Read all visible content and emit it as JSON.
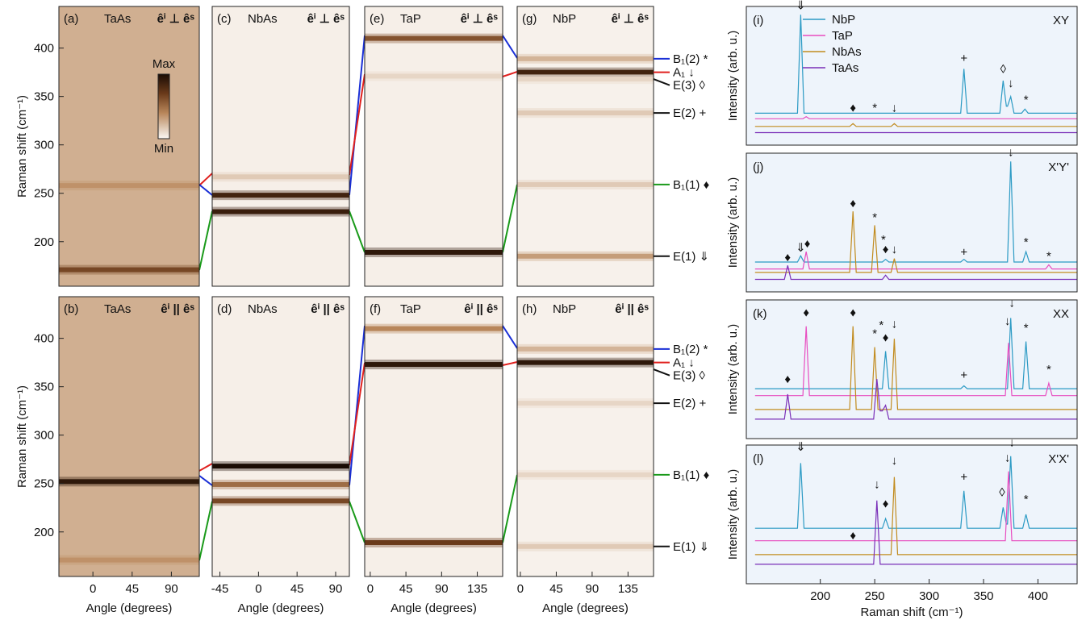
{
  "chart_data": [
    {
      "type": "heatmap",
      "panel": "(a)",
      "material": "TaAs",
      "polarization": "êⁱ ⊥ êˢ",
      "ylabel": "Raman shift (cm⁻¹)",
      "xlim": [
        -39,
        122
      ],
      "ylim": [
        154,
        443
      ],
      "yticks": [
        200,
        250,
        300,
        350,
        400
      ],
      "background": 0.32,
      "bands": [
        {
          "shift": 258,
          "intensity": 0.45
        },
        {
          "shift": 171,
          "intensity": 0.75
        }
      ],
      "colorbar_labels": [
        "Max",
        "Min"
      ]
    },
    {
      "type": "heatmap",
      "panel": "(b)",
      "material": "TaAs",
      "polarization": "êⁱ || êˢ",
      "xlabel": "Angle (degrees)",
      "ylabel": "Raman shift (cm⁻¹)",
      "xlim": [
        -39,
        122
      ],
      "xticks": [
        0,
        45,
        90
      ],
      "ylim": [
        154,
        443
      ],
      "yticks": [
        200,
        250,
        300,
        350,
        400
      ],
      "background": 0.32,
      "bands": [
        {
          "shift": 252,
          "intensity": 0.95
        },
        {
          "shift": 171,
          "intensity": 0.45
        }
      ]
    },
    {
      "type": "heatmap",
      "panel": "(c)",
      "material": "NbAs",
      "polarization": "êⁱ ⊥ êˢ",
      "xlim": [
        -54,
        106
      ],
      "ylim": [
        154,
        443
      ],
      "background": 0.04,
      "bands": [
        {
          "shift": 267,
          "intensity": 0.2
        },
        {
          "shift": 248,
          "intensity": 0.9
        },
        {
          "shift": 231,
          "intensity": 0.92
        }
      ]
    },
    {
      "type": "heatmap",
      "panel": "(d)",
      "material": "NbAs",
      "polarization": "êⁱ || êˢ",
      "xlabel": "Angle (degrees)",
      "xlim": [
        -54,
        106
      ],
      "xticks": [
        -45,
        0,
        45,
        90
      ],
      "ylim": [
        154,
        443
      ],
      "background": 0.04,
      "bands": [
        {
          "shift": 268,
          "intensity": 1.0
        },
        {
          "shift": 249,
          "intensity": 0.6
        },
        {
          "shift": 232,
          "intensity": 0.75
        }
      ]
    },
    {
      "type": "heatmap",
      "panel": "(e)",
      "material": "TaP",
      "polarization": "êⁱ ⊥ êˢ",
      "xlim": [
        -7,
        167
      ],
      "ylim": [
        154,
        443
      ],
      "background": 0.04,
      "bands": [
        {
          "shift": 410,
          "intensity": 0.7
        },
        {
          "shift": 371,
          "intensity": 0.15
        },
        {
          "shift": 189,
          "intensity": 0.95
        }
      ]
    },
    {
      "type": "heatmap",
      "panel": "(f)",
      "material": "TaP",
      "polarization": "êⁱ || êˢ",
      "xlabel": "Angle (degrees)",
      "xlim": [
        -7,
        167
      ],
      "xticks": [
        0,
        45,
        90,
        135
      ],
      "ylim": [
        154,
        443
      ],
      "background": 0.04,
      "bands": [
        {
          "shift": 410,
          "intensity": 0.5
        },
        {
          "shift": 373,
          "intensity": 0.95
        },
        {
          "shift": 189,
          "intensity": 0.8
        }
      ]
    },
    {
      "type": "heatmap",
      "panel": "(g)",
      "material": "NbP",
      "polarization": "êⁱ ⊥ êˢ",
      "xlim": [
        -4,
        167
      ],
      "ylim": [
        154,
        443
      ],
      "background": 0.03,
      "bands": [
        {
          "shift": 389,
          "intensity": 0.3
        },
        {
          "shift": 375,
          "intensity": 0.9
        },
        {
          "shift": 368,
          "intensity": 0.15
        },
        {
          "shift": 333,
          "intensity": 0.2
        },
        {
          "shift": 259,
          "intensity": 0.2
        },
        {
          "shift": 185,
          "intensity": 0.4
        }
      ],
      "mode_labels": [
        {
          "text": "B₁(2) *",
          "shift": 389,
          "color": "#1a2fd6"
        },
        {
          "text": "A₁ ↓",
          "shift": 375,
          "color": "#e0201e"
        },
        {
          "text": "E(3) ◊",
          "shift": 368,
          "color": "#111111"
        },
        {
          "text": "E(2) +",
          "shift": 333,
          "color": "#111111"
        },
        {
          "text": "B₁(1) ♦",
          "shift": 259,
          "color": "#1a9a1a"
        },
        {
          "text": "E(1) ⇓",
          "shift": 185,
          "color": "#111111"
        }
      ]
    },
    {
      "type": "heatmap",
      "panel": "(h)",
      "material": "NbP",
      "polarization": "êⁱ || êˢ",
      "xlabel": "Angle (degrees)",
      "xlim": [
        -4,
        167
      ],
      "xticks": [
        0,
        45,
        90,
        135
      ],
      "ylim": [
        154,
        443
      ],
      "background": 0.03,
      "bands": [
        {
          "shift": 389,
          "intensity": 0.3
        },
        {
          "shift": 375,
          "intensity": 0.95
        },
        {
          "shift": 333,
          "intensity": 0.15
        },
        {
          "shift": 259,
          "intensity": 0.15
        },
        {
          "shift": 185,
          "intensity": 0.2
        }
      ],
      "mode_labels": [
        {
          "text": "B₁(2) *",
          "shift": 389,
          "color": "#1a2fd6"
        },
        {
          "text": "A₁ ↓",
          "shift": 375,
          "color": "#e0201e"
        },
        {
          "text": "E(3) ◊",
          "shift": 368,
          "color": "#111111"
        },
        {
          "text": "E(2) +",
          "shift": 333,
          "color": "#111111"
        },
        {
          "text": "B₁(1) ♦",
          "shift": 259,
          "color": "#1a9a1a"
        },
        {
          "text": "E(1) ⇓",
          "shift": 185,
          "color": "#111111"
        }
      ]
    },
    {
      "type": "line",
      "panel": "(i)",
      "polarization": "XY",
      "ylabel": "Intensity (arb. u.)",
      "xlim": [
        132,
        436
      ],
      "ylim": [
        0,
        10
      ],
      "legend": "upper left",
      "series": [
        {
          "name": "NbP",
          "color": "#2b9ac4",
          "x": [
            140,
            179,
            182,
            185,
            329,
            332,
            335,
            365,
            368,
            371,
            372,
            375,
            378,
            385,
            388,
            391,
            436
          ],
          "values": [
            2.3,
            2.3,
            9.4,
            2.3,
            2.3,
            5.5,
            2.3,
            2.3,
            4.65,
            2.8,
            2.8,
            3.5,
            2.3,
            2.3,
            2.6,
            2.3,
            2.3
          ]
        },
        {
          "name": "TaP",
          "color": "#e84cc0",
          "x": [
            140,
            184,
            187,
            190,
            436
          ],
          "values": [
            1.9,
            1.9,
            2.05,
            1.9,
            1.9
          ]
        },
        {
          "name": "NbAs",
          "color": "#c18b1e",
          "x": [
            140,
            227,
            230,
            233,
            265,
            268,
            271,
            436
          ],
          "values": [
            1.35,
            1.35,
            1.55,
            1.35,
            1.35,
            1.55,
            1.35,
            1.35
          ]
        },
        {
          "name": "TaAs",
          "color": "#7a2fb8",
          "x": [
            140,
            436
          ],
          "values": [
            0.9,
            0.9
          ]
        }
      ],
      "annotations": [
        {
          "text": "⇓",
          "x": 182,
          "y": 9.8,
          "color": "#2b9ac4"
        },
        {
          "text": "♦",
          "x": 230,
          "y": 2.4,
          "color": "#c18b1e"
        },
        {
          "text": "*",
          "x": 250,
          "y": 2.4,
          "color": "#c18b1e"
        },
        {
          "text": "↓",
          "x": 268,
          "y": 2.4,
          "color": "#c18b1e"
        },
        {
          "text": "+",
          "x": 332,
          "y": 6.0,
          "color": "#2b9ac4"
        },
        {
          "text": "◊",
          "x": 368,
          "y": 5.2,
          "color": "#2b9ac4"
        },
        {
          "text": "↓",
          "x": 375,
          "y": 4.2,
          "color": "#2b9ac4"
        },
        {
          "text": "*",
          "x": 389,
          "y": 3.0,
          "color": "#2b9ac4"
        }
      ]
    },
    {
      "type": "line",
      "panel": "(j)",
      "polarization": "X'Y'",
      "ylabel": "Intensity (arb. u.)",
      "xlim": [
        132,
        436
      ],
      "ylim": [
        0,
        10
      ],
      "series": [
        {
          "color": "#2b9ac4",
          "x": [
            140,
            179,
            182,
            185,
            257,
            260,
            263,
            329,
            332,
            335,
            372,
            375,
            378,
            386,
            389,
            392,
            436
          ],
          "values": [
            2.15,
            2.15,
            2.6,
            2.15,
            2.15,
            2.35,
            2.15,
            2.15,
            2.35,
            2.15,
            2.15,
            9.4,
            2.15,
            2.15,
            2.9,
            2.15,
            2.15
          ]
        },
        {
          "color": "#e84cc0",
          "x": [
            140,
            184,
            187,
            190,
            407,
            410,
            413,
            436
          ],
          "values": [
            1.65,
            1.65,
            2.9,
            1.65,
            1.65,
            1.95,
            1.65,
            1.65
          ]
        },
        {
          "color": "#c18b1e",
          "x": [
            140,
            227,
            230,
            233,
            247,
            250,
            253,
            265,
            268,
            271,
            436
          ],
          "values": [
            1.4,
            1.4,
            5.8,
            1.4,
            1.4,
            4.8,
            1.4,
            1.4,
            2.4,
            1.4,
            1.4
          ]
        },
        {
          "color": "#7a2fb8",
          "x": [
            140,
            167,
            170,
            173,
            257,
            260,
            263,
            436
          ],
          "values": [
            0.9,
            0.9,
            1.9,
            0.9,
            0.9,
            1.2,
            0.9,
            0.9
          ]
        }
      ],
      "annotations": [
        {
          "text": "♦",
          "x": 170,
          "y": 2.2,
          "color": "#7a2fb8"
        },
        {
          "text": "⇓",
          "x": 182,
          "y": 2.9,
          "color": "#2b9ac4"
        },
        {
          "text": "♦",
          "x": 188,
          "y": 3.2,
          "color": "#e84cc0"
        },
        {
          "text": "♦",
          "x": 230,
          "y": 6.1,
          "color": "#c18b1e"
        },
        {
          "text": "*",
          "x": 250,
          "y": 5.1,
          "color": "#c18b1e"
        },
        {
          "text": "*",
          "x": 258,
          "y": 3.5,
          "color": "#7a2fb8"
        },
        {
          "text": "♦",
          "x": 260,
          "y": 2.8,
          "color": "#2b9ac4"
        },
        {
          "text": "↓",
          "x": 268,
          "y": 2.8,
          "color": "#c18b1e"
        },
        {
          "text": "+",
          "x": 332,
          "y": 2.6,
          "color": "#2b9ac4"
        },
        {
          "text": "↓",
          "x": 375,
          "y": 9.8,
          "color": "#2b9ac4"
        },
        {
          "text": "*",
          "x": 389,
          "y": 3.3,
          "color": "#2b9ac4"
        },
        {
          "text": "*",
          "x": 410,
          "y": 2.3,
          "color": "#e84cc0"
        }
      ]
    },
    {
      "type": "line",
      "panel": "(k)",
      "polarization": "XX",
      "ylabel": "Intensity (arb. u.)",
      "xlim": [
        132,
        436
      ],
      "ylim": [
        0,
        10
      ],
      "series": [
        {
          "color": "#2b9ac4",
          "x": [
            140,
            257,
            260,
            263,
            329,
            332,
            335,
            372,
            375,
            378,
            386,
            389,
            392,
            436
          ],
          "values": [
            3.6,
            3.6,
            6.3,
            3.6,
            3.6,
            3.8,
            3.6,
            3.6,
            8.7,
            3.6,
            3.6,
            7.0,
            3.6,
            3.6
          ]
        },
        {
          "color": "#e84cc0",
          "x": [
            140,
            184,
            187,
            190,
            370,
            373,
            376,
            407,
            410,
            413,
            436
          ],
          "values": [
            3.1,
            3.1,
            8.1,
            3.1,
            3.1,
            6.9,
            3.1,
            3.1,
            4.0,
            3.1,
            3.1
          ]
        },
        {
          "color": "#c18b1e",
          "x": [
            140,
            227,
            230,
            233,
            247,
            250,
            253,
            265,
            268,
            271,
            436
          ],
          "values": [
            2.1,
            2.1,
            8.1,
            2.1,
            2.1,
            6.6,
            2.1,
            2.1,
            7.2,
            2.1,
            2.1
          ]
        },
        {
          "color": "#7a2fb8",
          "x": [
            140,
            167,
            170,
            173,
            249,
            252,
            255,
            257,
            260,
            263,
            436
          ],
          "values": [
            1.4,
            1.4,
            3.2,
            1.4,
            1.4,
            4.3,
            2.0,
            2.0,
            2.4,
            1.4,
            1.4
          ]
        }
      ],
      "annotations": [
        {
          "text": "♦",
          "x": 170,
          "y": 4.0,
          "color": "#7a2fb8"
        },
        {
          "text": "♦",
          "x": 187,
          "y": 8.8,
          "color": "#e84cc0"
        },
        {
          "text": "♦",
          "x": 230,
          "y": 8.8,
          "color": "#c18b1e"
        },
        {
          "text": "*",
          "x": 250,
          "y": 7.3,
          "color": "#c18b1e"
        },
        {
          "text": "*",
          "x": 256,
          "y": 7.9,
          "color": "#7a2fb8"
        },
        {
          "text": "♦",
          "x": 260,
          "y": 7.0,
          "color": "#2b9ac4"
        },
        {
          "text": "↓",
          "x": 268,
          "y": 8.0,
          "color": "#c18b1e"
        },
        {
          "text": "+",
          "x": 332,
          "y": 4.3,
          "color": "#2b9ac4"
        },
        {
          "text": "↓",
          "x": 372,
          "y": 8.2,
          "color": "#e84cc0"
        },
        {
          "text": "↓",
          "x": 376,
          "y": 9.5,
          "color": "#2b9ac4"
        },
        {
          "text": "*",
          "x": 389,
          "y": 7.7,
          "color": "#2b9ac4"
        },
        {
          "text": "*",
          "x": 410,
          "y": 4.7,
          "color": "#e84cc0"
        }
      ]
    },
    {
      "type": "line",
      "panel": "(l)",
      "polarization": "X'X'",
      "xlabel": "Raman shift (cm⁻¹)",
      "ylabel": "Intensity (arb. u.)",
      "xlim": [
        132,
        436
      ],
      "xticks": [
        200,
        250,
        300,
        350,
        400
      ],
      "ylim": [
        0,
        10
      ],
      "series": [
        {
          "color": "#2b9ac4",
          "x": [
            140,
            179,
            182,
            185,
            257,
            260,
            263,
            329,
            332,
            335,
            365,
            368,
            371,
            372,
            375,
            378,
            386,
            389,
            392,
            436
          ],
          "values": [
            4.0,
            4.0,
            8.7,
            4.0,
            4.0,
            4.7,
            4.0,
            4.0,
            6.7,
            4.0,
            4.0,
            5.5,
            4.3,
            4.3,
            9.2,
            4.0,
            4.0,
            5.0,
            4.0,
            4.0
          ]
        },
        {
          "color": "#e84cc0",
          "x": [
            140,
            370,
            373,
            376,
            436
          ],
          "values": [
            3.1,
            3.1,
            8.1,
            3.1,
            3.1
          ]
        },
        {
          "color": "#c18b1e",
          "x": [
            140,
            265,
            268,
            271,
            436
          ],
          "values": [
            2.1,
            2.1,
            7.7,
            2.1,
            2.1
          ]
        },
        {
          "color": "#7a2fb8",
          "x": [
            140,
            249,
            252,
            255,
            436
          ],
          "values": [
            1.4,
            1.4,
            6.0,
            1.4,
            1.4
          ]
        }
      ],
      "annotations": [
        {
          "text": "⇓",
          "x": 182,
          "y": 9.6,
          "color": "#2b9ac4"
        },
        {
          "text": "♦",
          "x": 230,
          "y": 3.2,
          "color": "#c18b1e"
        },
        {
          "text": "↓",
          "x": 252,
          "y": 6.9,
          "color": "#7a2fb8"
        },
        {
          "text": "♦",
          "x": 260,
          "y": 5.5,
          "color": "#2b9ac4"
        },
        {
          "text": "↓",
          "x": 268,
          "y": 8.6,
          "color": "#c18b1e"
        },
        {
          "text": "+",
          "x": 332,
          "y": 7.4,
          "color": "#2b9ac4"
        },
        {
          "text": "◊",
          "x": 367,
          "y": 6.3,
          "color": "#2b9ac4"
        },
        {
          "text": "↓",
          "x": 372,
          "y": 8.8,
          "color": "#e84cc0"
        },
        {
          "text": "↓",
          "x": 376,
          "y": 9.9,
          "color": "#2b9ac4"
        },
        {
          "text": "*",
          "x": 389,
          "y": 5.8,
          "color": "#2b9ac4"
        }
      ]
    }
  ]
}
